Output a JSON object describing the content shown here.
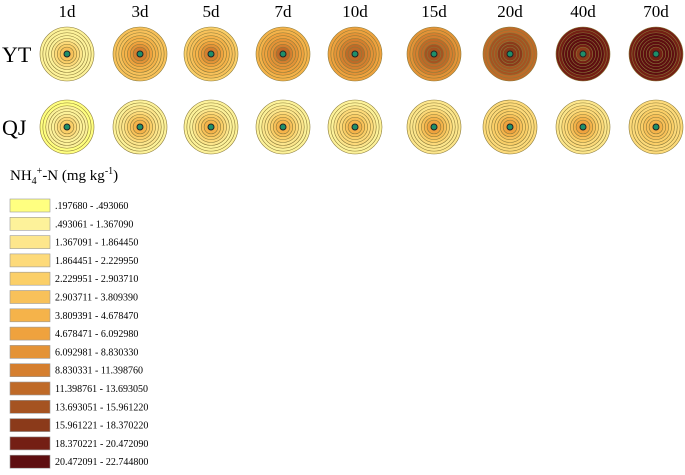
{
  "columns": [
    "1d",
    "3d",
    "5d",
    "7d",
    "10d",
    "15d",
    "20d",
    "40d",
    "70d"
  ],
  "rows": [
    {
      "label": "YT",
      "circles": [
        {
          "rings": [
            1,
            1,
            1,
            1,
            2,
            3,
            4,
            5
          ]
        },
        {
          "rings": [
            5,
            5,
            5,
            6,
            6,
            7,
            8,
            9
          ]
        },
        {
          "rings": [
            4,
            5,
            5,
            6,
            6,
            7,
            8,
            9
          ]
        },
        {
          "rings": [
            6,
            6,
            7,
            7,
            8,
            8,
            9,
            10
          ]
        },
        {
          "rings": [
            7,
            7,
            8,
            8,
            9,
            9,
            10,
            10
          ]
        },
        {
          "rings": [
            8,
            8,
            9,
            9,
            10,
            10,
            11,
            11
          ]
        },
        {
          "rings": [
            10,
            10,
            11,
            11,
            11,
            12,
            12,
            12
          ]
        },
        {
          "rings": [
            13,
            13,
            14,
            14,
            14,
            14,
            13,
            12
          ]
        },
        {
          "rings": [
            13,
            13,
            14,
            14,
            14,
            14,
            14,
            13
          ]
        }
      ]
    },
    {
      "label": "QJ",
      "circles": [
        {
          "rings": [
            0,
            0,
            1,
            1,
            1,
            2,
            3,
            4
          ]
        },
        {
          "rings": [
            1,
            1,
            2,
            2,
            3,
            4,
            5,
            6
          ]
        },
        {
          "rings": [
            1,
            1,
            1,
            2,
            3,
            4,
            5,
            6
          ]
        },
        {
          "rings": [
            1,
            1,
            2,
            2,
            3,
            4,
            5,
            6
          ]
        },
        {
          "rings": [
            1,
            1,
            2,
            3,
            3,
            4,
            5,
            6
          ]
        },
        {
          "rings": [
            2,
            2,
            2,
            3,
            4,
            5,
            6,
            7
          ]
        },
        {
          "rings": [
            3,
            3,
            3,
            4,
            4,
            5,
            6,
            7
          ]
        },
        {
          "rings": [
            2,
            2,
            3,
            3,
            4,
            5,
            6,
            7
          ]
        },
        {
          "rings": [
            3,
            3,
            3,
            4,
            4,
            5,
            5,
            6
          ]
        }
      ]
    }
  ],
  "legend": {
    "title": {
      "main": "NH",
      "sub": "4",
      "sup": "+",
      "mid": "-N (mg kg",
      "sup2": "-1",
      "end": ")"
    },
    "entries": [
      {
        "label": ".197680 - .493060",
        "color": "#ffff80"
      },
      {
        "label": ".493061 - 1.367090",
        "color": "#fdf29a"
      },
      {
        "label": "1.367091 - 1.864450",
        "color": "#fde68c"
      },
      {
        "label": "1.864451 - 2.229950",
        "color": "#fdda7a"
      },
      {
        "label": "2.229951 - 2.903710",
        "color": "#fbcf68"
      },
      {
        "label": "2.903711 - 3.809390",
        "color": "#f8c15a"
      },
      {
        "label": "3.809391 - 4.678470",
        "color": "#f5b34a"
      },
      {
        "label": "4.678471 - 6.092980",
        "color": "#efa23e"
      },
      {
        "label": "6.092981 - 8.830330",
        "color": "#e49337"
      },
      {
        "label": "8.830331 - 11.398760",
        "color": "#d57f2f"
      },
      {
        "label": "11.398761 - 13.693050",
        "color": "#bf6a28"
      },
      {
        "label": "13.693051 - 15.961220",
        "color": "#a55321"
      },
      {
        "label": "15.961221 - 18.370220",
        "color": "#8b3a1a"
      },
      {
        "label": "18.370221 - 20.472090",
        "color": "#741f14"
      },
      {
        "label": "20.472091 - 22.744800",
        "color": "#5e0e10"
      }
    ]
  }
}
